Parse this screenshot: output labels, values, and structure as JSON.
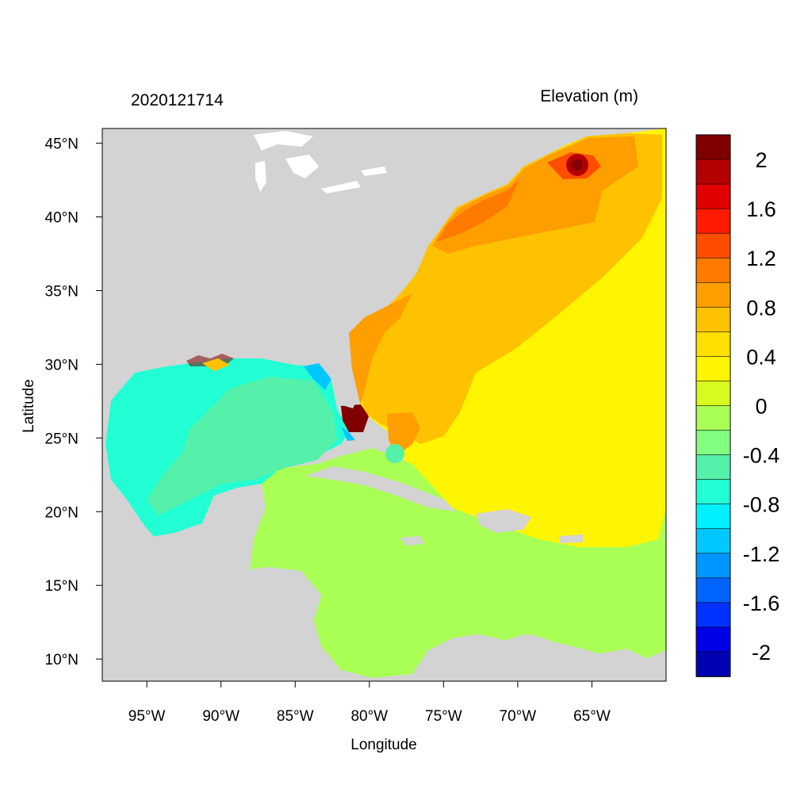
{
  "header": {
    "timestamp": "2020121714",
    "variable": "Elevation (m)"
  },
  "axes": {
    "xlabel": "Longitude",
    "ylabel": "Latitude",
    "xticks": [
      {
        "lon": -95,
        "label": "95°W"
      },
      {
        "lon": -90,
        "label": "90°W"
      },
      {
        "lon": -85,
        "label": "85°W"
      },
      {
        "lon": -80,
        "label": "80°W"
      },
      {
        "lon": -75,
        "label": "75°W"
      },
      {
        "lon": -70,
        "label": "70°W"
      },
      {
        "lon": -65,
        "label": "65°W"
      }
    ],
    "yticks": [
      {
        "lat": 45,
        "label": "45°N"
      },
      {
        "lat": 40,
        "label": "40°N"
      },
      {
        "lat": 35,
        "label": "35°N"
      },
      {
        "lat": 30,
        "label": "30°N"
      },
      {
        "lat": 25,
        "label": "25°N"
      },
      {
        "lat": 20,
        "label": "20°N"
      },
      {
        "lat": 15,
        "label": "15°N"
      },
      {
        "lat": 10,
        "label": "10°N"
      }
    ],
    "lon_range": [
      -98,
      -60
    ],
    "lat_range": [
      8.5,
      46
    ]
  },
  "colorbar": {
    "levels": [
      "2",
      "1.6",
      "1.2",
      "0.8",
      "0.4",
      "0",
      "-0.4",
      "-0.8",
      "-1.2",
      "-1.6",
      "-2"
    ],
    "colors": [
      "#800000",
      "#b50000",
      "#e00000",
      "#ff1a00",
      "#ff4d00",
      "#ff7a00",
      "#ff9e00",
      "#ffc200",
      "#ffe000",
      "#fff500",
      "#d9fa1e",
      "#aaff55",
      "#80ff80",
      "#55f0aa",
      "#22ffd4",
      "#00f0ff",
      "#00c8ff",
      "#0096ff",
      "#0064ff",
      "#0032ff",
      "#0000e6",
      "#0000b4"
    ]
  },
  "colors": {
    "land": "#d3d3d3",
    "lakes": "#ffffff"
  }
}
